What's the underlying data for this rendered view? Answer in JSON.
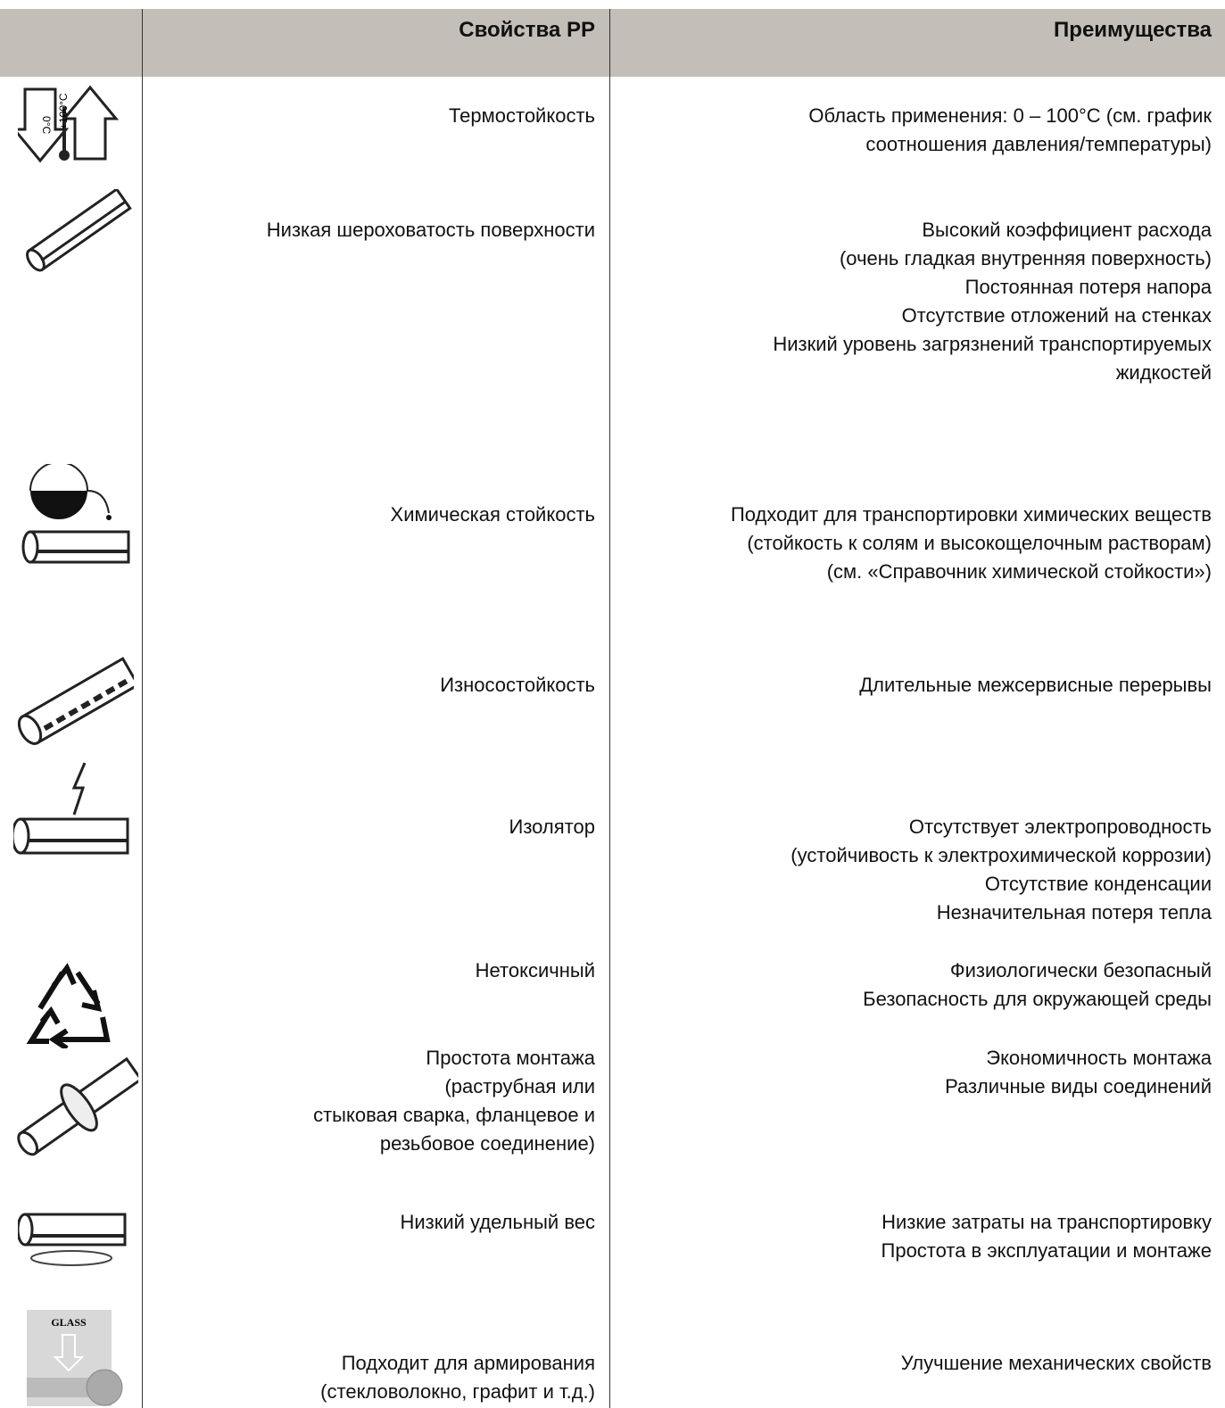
{
  "table": {
    "headers": [
      "Свойства PP",
      "Преимущества"
    ],
    "rows": [
      {
        "property": [
          "Термостойкость"
        ],
        "advantages": [
          "Область применения: 0 – 100°C (см. график",
          "соотношения давления/температуры)"
        ]
      },
      {
        "property": [
          "Низкая шероховатость поверхности"
        ],
        "advantages": [
          "Высокий коэффициент расхода",
          "(очень гладкая внутренняя поверхность)",
          "Постоянная потеря напора",
          "Отсутствие отложений на стенках",
          "Низкий уровень загрязнений транспортируемых",
          "жидкостей"
        ]
      },
      {
        "property": [
          "Химическая стойкость"
        ],
        "advantages": [
          "Подходит для транспортировки химических веществ",
          "(стойкость к солям и высокощелочным растворам)",
          "(см. «Справочник химической стойкости»)"
        ]
      },
      {
        "property": [
          "Износостойкость"
        ],
        "advantages": [
          "Длительные межсервисные перерывы"
        ]
      },
      {
        "property": [
          "Изолятор"
        ],
        "advantages": [
          "Отсутствует электропроводность",
          "(устойчивость к электрохимической коррозии)",
          "Отсутствие конденсации",
          "Незначительная потеря тепла"
        ]
      },
      {
        "property": [
          "Нетоксичный"
        ],
        "advantages": [
          "Физиологически безопасный",
          "Безопасность для окружающей среды"
        ]
      },
      {
        "property": [
          "Простота монтажа",
          "(раструбная или",
          "стыковая сварка, фланцевое и",
          "резьбовое соединение)"
        ],
        "advantages": [
          "Экономичность монтажа",
          "Различные виды соединений"
        ]
      },
      {
        "property": [
          "Низкий удельный вес"
        ],
        "advantages": [
          "Низкие затраты на транспортировку",
          "Простота в эксплуатации и монтаже"
        ]
      },
      {
        "property": [
          "Подходит для армирования",
          "(стекловолокно, графит и т.д.)"
        ],
        "advantages": [
          "Улучшение механических свойств"
        ]
      }
    ],
    "icon_labels": {
      "temp_low": "0°C",
      "temp_high": "+100°C",
      "glass": "GLASS"
    }
  }
}
